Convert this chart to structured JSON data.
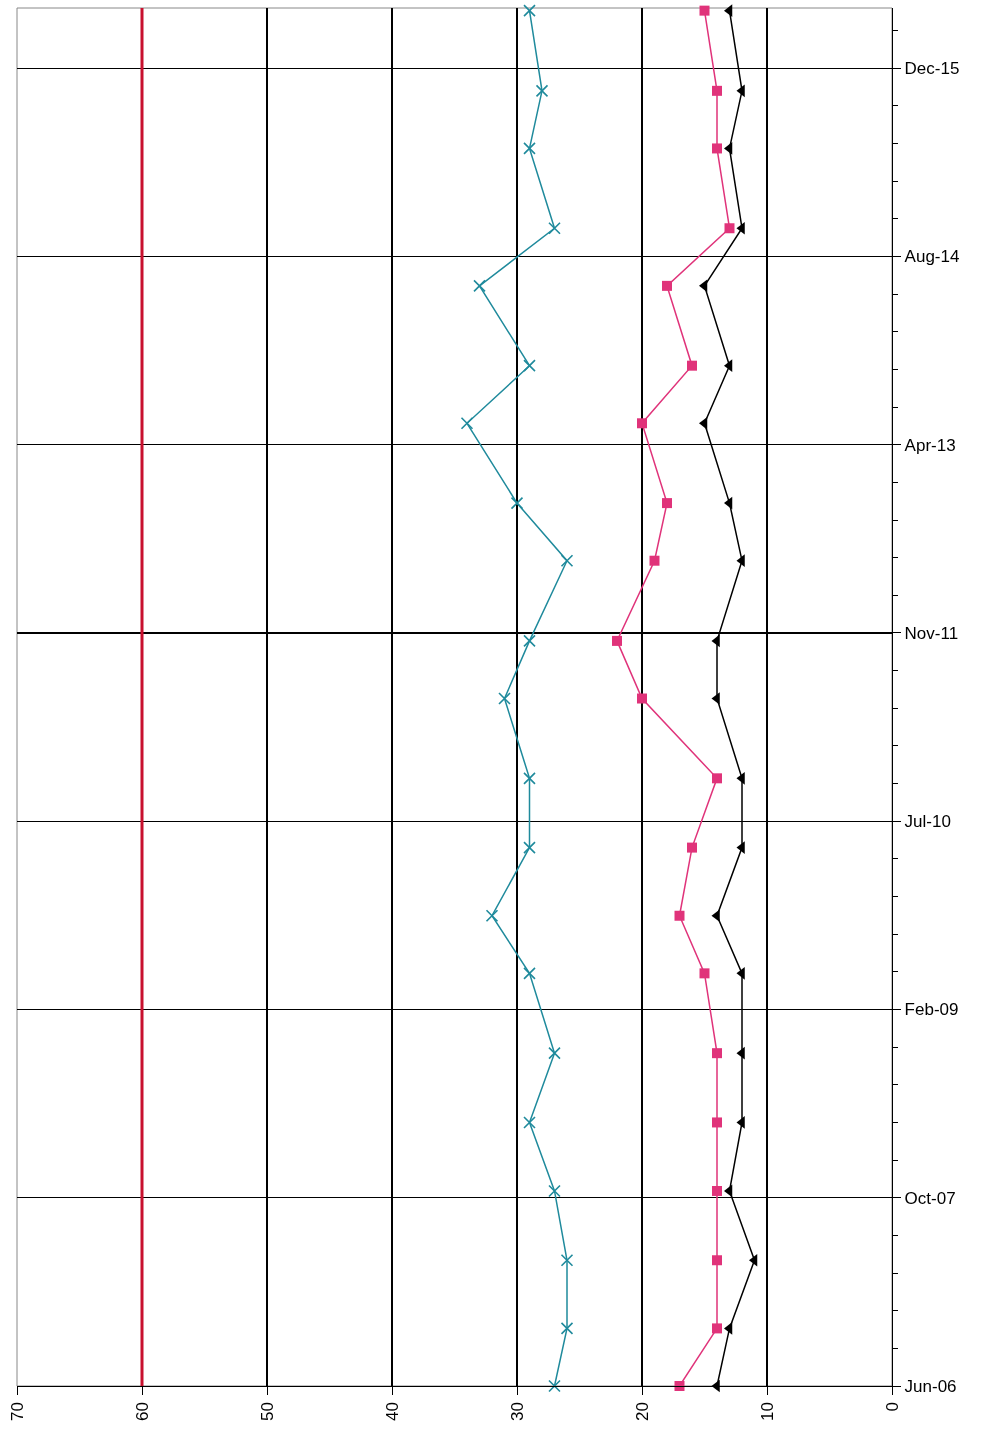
{
  "chart_data": {
    "type": "line",
    "orientation": "horizontal",
    "x": [
      "2006-06",
      "2006-11",
      "2007-05",
      "2007-11",
      "2008-05",
      "2008-11",
      "2009-06",
      "2009-11",
      "2010-05",
      "2010-11",
      "2011-06",
      "2011-11",
      "2012-06",
      "2012-11",
      "2013-06",
      "2013-11",
      "2014-06",
      "2014-11",
      "2015-06",
      "2015-11",
      "2016-06"
    ],
    "series": [
      {
        "color": "#1f8a9c",
        "marker": "cross",
        "values": [
          27,
          26,
          26,
          27,
          29,
          27,
          29,
          32,
          29,
          29,
          31,
          29,
          26,
          30,
          34,
          29,
          33,
          27,
          29,
          28,
          29
        ]
      },
      {
        "color": "#e0337a",
        "marker": "square",
        "values": [
          17,
          14,
          14,
          14,
          14,
          14,
          15,
          17,
          16,
          14,
          20,
          22,
          19,
          18,
          20,
          16,
          18,
          13,
          14,
          14,
          15
        ]
      },
      {
        "color": "#000000",
        "marker": "triangle",
        "values": [
          14,
          13,
          11,
          13,
          12,
          12,
          12,
          14,
          12,
          12,
          14,
          14,
          12,
          13,
          15,
          13,
          15,
          12,
          13,
          12,
          13
        ]
      }
    ],
    "xlim": [
      70,
      0
    ],
    "xticks": [
      70,
      60,
      50,
      40,
      30,
      20,
      10,
      0
    ],
    "ylim": [
      "2006-06-01",
      "2016-06-08"
    ],
    "yticks": [
      {
        "value": "2006-06-01",
        "label": "Jun-06"
      },
      {
        "value": "2006-09-09",
        "label": null
      },
      {
        "value": "2006-12-18",
        "label": null
      },
      {
        "value": "2007-03-28",
        "label": null
      },
      {
        "value": "2007-07-06",
        "label": null
      },
      {
        "value": "2007-10-14",
        "label": "Oct-07"
      },
      {
        "value": "2008-01-22",
        "label": null
      },
      {
        "value": "2008-05-01",
        "label": null
      },
      {
        "value": "2008-08-09",
        "label": null
      },
      {
        "value": "2008-11-17",
        "label": null
      },
      {
        "value": "2009-02-25",
        "label": "Feb-09"
      },
      {
        "value": "2009-06-05",
        "label": null
      },
      {
        "value": "2009-09-13",
        "label": null
      },
      {
        "value": "2009-12-22",
        "label": null
      },
      {
        "value": "2010-04-01",
        "label": null
      },
      {
        "value": "2010-07-10",
        "label": "Jul-10"
      },
      {
        "value": "2010-10-18",
        "label": null
      },
      {
        "value": "2011-01-26",
        "label": null
      },
      {
        "value": "2011-05-06",
        "label": null
      },
      {
        "value": "2011-08-14",
        "label": null
      },
      {
        "value": "2011-11-22",
        "label": "Nov-11"
      },
      {
        "value": "2012-03-01",
        "label": null
      },
      {
        "value": "2012-06-09",
        "label": null
      },
      {
        "value": "2012-09-17",
        "label": null
      },
      {
        "value": "2012-12-26",
        "label": null
      },
      {
        "value": "2013-04-05",
        "label": "Apr-13"
      },
      {
        "value": "2013-07-14",
        "label": null
      },
      {
        "value": "2013-10-22",
        "label": null
      },
      {
        "value": "2014-01-30",
        "label": null
      },
      {
        "value": "2014-05-10",
        "label": null
      },
      {
        "value": "2014-08-18",
        "label": "Aug-14"
      },
      {
        "value": "2014-11-26",
        "label": null
      },
      {
        "value": "2015-03-06",
        "label": null
      },
      {
        "value": "2015-06-14",
        "label": null
      },
      {
        "value": "2015-09-22",
        "label": null
      },
      {
        "value": "2015-12-31",
        "label": "Dec-15"
      },
      {
        "value": "2016-04-09",
        "label": null
      }
    ],
    "grid": true,
    "ref_lines": [
      {
        "axis": "x",
        "value": 60,
        "color": "#c8102e"
      }
    ]
  }
}
